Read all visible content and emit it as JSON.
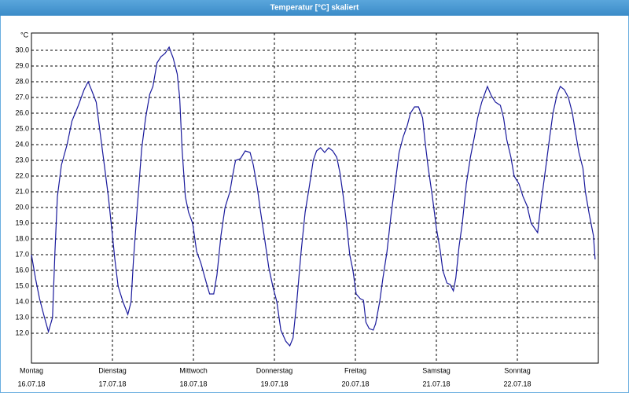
{
  "chart_data": {
    "type": "line",
    "title": "Temperatur [°C] skaliert",
    "y_label": "°C",
    "color": "#1a1a9c",
    "grid": true,
    "xlim": [
      0,
      7
    ],
    "ylim": [
      10.1,
      31.1
    ],
    "xticks": [
      {
        "value": 0,
        "label": "Montag"
      },
      {
        "value": 1,
        "label": "Dienstag"
      },
      {
        "value": 2,
        "label": "Mittwoch"
      },
      {
        "value": 3,
        "label": "Donnerstag"
      },
      {
        "value": 4,
        "label": "Freitag"
      },
      {
        "value": 5,
        "label": "Samstag"
      },
      {
        "value": 6,
        "label": "Sonntag"
      }
    ],
    "xtick_dates": [
      "16.07.18",
      "17.07.18",
      "18.07.18",
      "19.07.18",
      "20.07.18",
      "21.07.18",
      "22.07.18"
    ],
    "yticks": [
      {
        "value": 12,
        "label": "12.0"
      },
      {
        "value": 13,
        "label": "13.0"
      },
      {
        "value": 14,
        "label": "14.0"
      },
      {
        "value": 15,
        "label": "15.0"
      },
      {
        "value": 16,
        "label": "16.0"
      },
      {
        "value": 17,
        "label": "17.0"
      },
      {
        "value": 18,
        "label": "18.0"
      },
      {
        "value": 19,
        "label": "19.0"
      },
      {
        "value": 20,
        "label": "20.0"
      },
      {
        "value": 21,
        "label": "21.0"
      },
      {
        "value": 22,
        "label": "22.0"
      },
      {
        "value": 23,
        "label": "23.0"
      },
      {
        "value": 24,
        "label": "24.0"
      },
      {
        "value": 25,
        "label": "25.0"
      },
      {
        "value": 26,
        "label": "26.0"
      },
      {
        "value": 27,
        "label": "27.0"
      },
      {
        "value": 28,
        "label": "28.0"
      },
      {
        "value": 29,
        "label": "29.0"
      },
      {
        "value": 30,
        "label": "30.0"
      }
    ],
    "x": [
      0.0,
      0.05,
      0.1,
      0.15,
      0.21,
      0.26,
      0.29,
      0.32,
      0.37,
      0.44,
      0.5,
      0.58,
      0.65,
      0.7,
      0.74,
      0.8,
      0.85,
      0.9,
      0.95,
      0.99,
      1.03,
      1.07,
      1.13,
      1.19,
      1.23,
      1.26,
      1.31,
      1.36,
      1.41,
      1.46,
      1.5,
      1.55,
      1.6,
      1.65,
      1.7,
      1.75,
      1.8,
      1.83,
      1.86,
      1.9,
      1.94,
      1.99,
      2.04,
      2.09,
      2.16,
      2.2,
      2.25,
      2.29,
      2.34,
      2.39,
      2.45,
      2.49,
      2.52,
      2.58,
      2.64,
      2.7,
      2.74,
      2.79,
      2.83,
      2.88,
      2.93,
      2.98,
      3.03,
      3.08,
      3.14,
      3.19,
      3.23,
      3.28,
      3.33,
      3.38,
      3.43,
      3.48,
      3.52,
      3.57,
      3.62,
      3.67,
      3.72,
      3.77,
      3.81,
      3.85,
      3.89,
      3.93,
      3.97,
      4.01,
      4.06,
      4.1,
      4.13,
      4.17,
      4.22,
      4.25,
      4.3,
      4.34,
      4.39,
      4.44,
      4.49,
      4.54,
      4.59,
      4.64,
      4.68,
      4.73,
      4.78,
      4.83,
      4.86,
      4.9,
      4.95,
      5.0,
      5.05,
      5.08,
      5.13,
      5.17,
      5.21,
      5.24,
      5.28,
      5.32,
      5.37,
      5.42,
      5.47,
      5.51,
      5.56,
      5.63,
      5.68,
      5.73,
      5.79,
      5.83,
      5.87,
      5.92,
      5.96,
      6.02,
      6.07,
      6.12,
      6.17,
      6.21,
      6.25,
      6.29,
      6.35,
      6.4,
      6.44,
      6.49,
      6.53,
      6.58,
      6.63,
      6.68,
      6.72,
      6.76,
      6.81,
      6.84,
      6.89,
      6.94,
      6.96
    ],
    "values": [
      17.0,
      15.5,
      14.2,
      13.2,
      12.1,
      13.0,
      17.2,
      20.7,
      22.7,
      24.0,
      25.5,
      26.5,
      27.5,
      28.0,
      27.5,
      26.7,
      24.7,
      22.7,
      20.7,
      18.7,
      16.7,
      15.0,
      14.0,
      13.2,
      14.0,
      16.7,
      20.2,
      23.7,
      25.7,
      27.2,
      27.7,
      29.2,
      29.6,
      29.8,
      30.2,
      29.5,
      28.5,
      27.0,
      23.7,
      20.7,
      19.7,
      19.0,
      17.2,
      16.5,
      15.2,
      14.5,
      14.5,
      15.7,
      18.2,
      20.0,
      21.0,
      22.2,
      23.0,
      23.1,
      23.6,
      23.5,
      22.7,
      21.2,
      19.7,
      18.0,
      16.2,
      15.0,
      14.0,
      12.2,
      11.5,
      11.2,
      11.7,
      14.2,
      17.2,
      19.7,
      21.3,
      23.0,
      23.6,
      23.8,
      23.5,
      23.8,
      23.6,
      23.2,
      22.2,
      20.7,
      19.0,
      17.0,
      16.0,
      14.5,
      14.2,
      14.1,
      12.7,
      12.3,
      12.2,
      12.6,
      14.0,
      15.5,
      17.2,
      19.5,
      21.5,
      23.5,
      24.5,
      25.2,
      26.0,
      26.4,
      26.4,
      25.7,
      24.2,
      22.5,
      20.7,
      18.7,
      17.2,
      16.0,
      15.2,
      15.1,
      14.7,
      15.5,
      17.5,
      19.0,
      21.5,
      23.2,
      24.5,
      25.7,
      26.7,
      27.7,
      27.1,
      26.7,
      26.5,
      25.7,
      24.3,
      23.2,
      22.0,
      21.5,
      20.7,
      20.1,
      19.0,
      18.7,
      18.4,
      20.2,
      22.5,
      24.5,
      26.0,
      27.2,
      27.7,
      27.5,
      27.0,
      26.0,
      24.7,
      23.5,
      22.5,
      21.0,
      19.5,
      18.2,
      16.7
    ]
  }
}
